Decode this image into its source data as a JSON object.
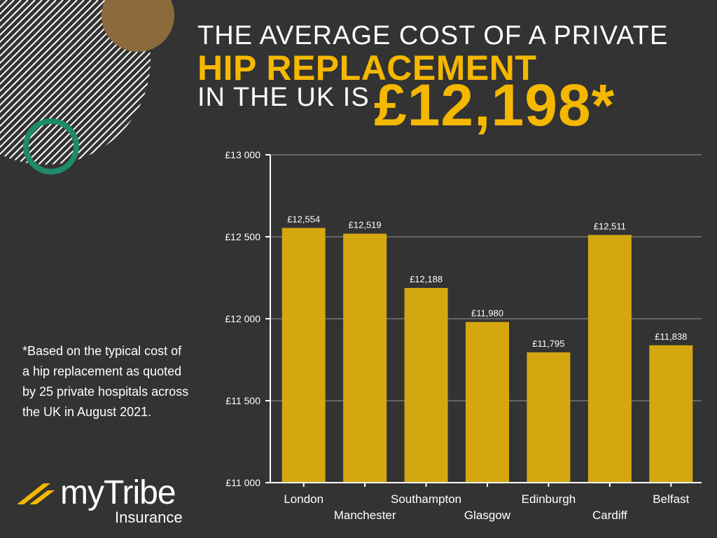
{
  "headline": {
    "line1": "THE AVERAGE COST OF A PRIVATE",
    "line2": "HIP REPLACEMENT",
    "line3_prefix": "IN THE UK IS",
    "amount": "£12,198*"
  },
  "footnote": "*Based on the typical cost of a hip replacement as quoted by 25 private hospitals across the UK in August 2021.",
  "brand": {
    "name": "myTribe",
    "sub": "Insurance"
  },
  "colors": {
    "background": "#333333",
    "accent": "#f5b800",
    "bar": "#d4a710",
    "ring": "#1f8a6a",
    "circle": "#8c6a3c"
  },
  "chart_data": {
    "type": "bar",
    "categories": [
      "London",
      "Manchester",
      "Southampton",
      "Glasgow",
      "Edinburgh",
      "Cardiff",
      "Belfast"
    ],
    "values": [
      12554,
      12519,
      12188,
      11980,
      11795,
      12511,
      11838
    ],
    "value_labels": [
      "£12,554",
      "£12,519",
      "£12,188",
      "£11,980",
      "£11,795",
      "£12,511",
      "£11,838"
    ],
    "ylim": [
      11000,
      13000
    ],
    "yticks": [
      11000,
      11500,
      12000,
      12500,
      13000
    ],
    "ytick_labels": [
      "£11 000",
      "£11 500",
      "£12 000",
      "£12 500",
      "£13 000"
    ],
    "grid": true,
    "title": "",
    "xlabel": "",
    "ylabel": ""
  }
}
